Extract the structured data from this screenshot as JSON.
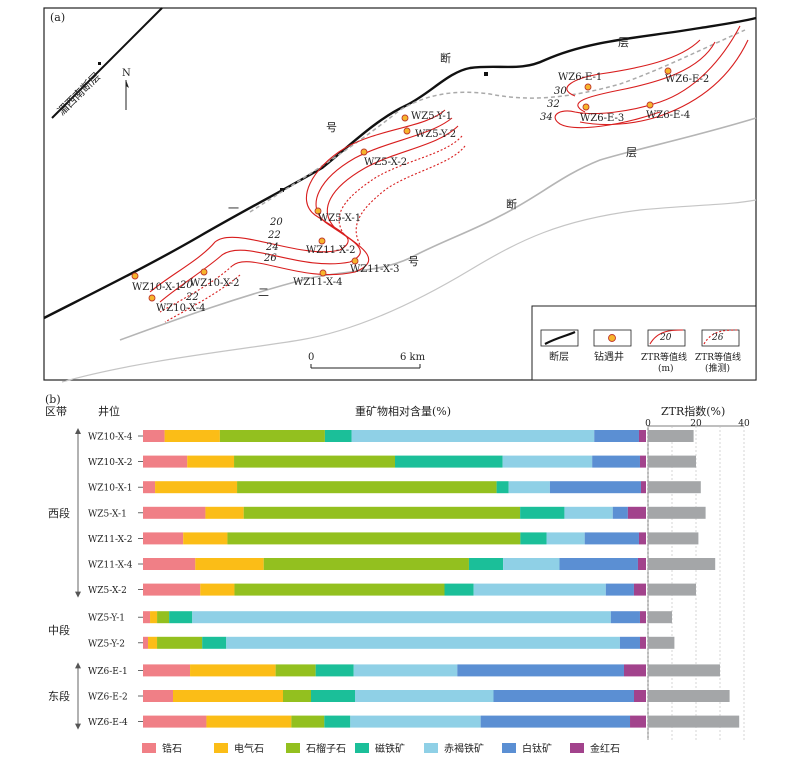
{
  "panel_a": {
    "label": "(a)",
    "fault_nw": "湄西南断层",
    "fault_main_chars": [
      "断",
      "层",
      "号",
      "一"
    ],
    "fault_south_chars": [
      "断",
      "层",
      "号",
      "二"
    ],
    "north": "N",
    "wells": [
      {
        "id": "WZ5-Y-1"
      },
      {
        "id": "WZ5-Y-2"
      },
      {
        "id": "WZ5-X-2"
      },
      {
        "id": "WZ5-X-1"
      },
      {
        "id": "WZ11-X-2"
      },
      {
        "id": "WZ11-X-3"
      },
      {
        "id": "WZ11-X-4"
      },
      {
        "id": "WZ10-X-1"
      },
      {
        "id": "WZ10-X-2"
      },
      {
        "id": "WZ10-X-4"
      },
      {
        "id": "WZ6-E-1"
      },
      {
        "id": "WZ6-E-2"
      },
      {
        "id": "WZ6-E-3"
      },
      {
        "id": "WZ6-E-4"
      }
    ],
    "contours": [
      {
        "value": "20"
      },
      {
        "value": "22"
      },
      {
        "value": "24"
      },
      {
        "value": "26"
      },
      {
        "value": "30"
      },
      {
        "value": "32"
      },
      {
        "value": "34"
      },
      {
        "value": "20"
      },
      {
        "value": "22"
      }
    ],
    "scale": {
      "start": "0",
      "end": "6 km"
    },
    "legend": [
      {
        "text": "断层"
      },
      {
        "text": "钻遇井"
      },
      {
        "text": "ZTR等值线",
        "sub": "(m)",
        "value": "20"
      },
      {
        "text": "ZTR等值线",
        "sub": "(推测)",
        "value": "26"
      }
    ]
  },
  "chart_data": {
    "type": "bar",
    "panel_label": "(b)",
    "col_zone": "区带",
    "col_well": "井位",
    "title": "重矿物相对含量(%)",
    "ztr_title": "ZTR指数(%)",
    "ztr_ticks": [
      0,
      10,
      20,
      30,
      40
    ],
    "ztr_ticks_labeled": [
      "0",
      "20",
      "40"
    ],
    "ztr_xlim": [
      0,
      40
    ],
    "zones": [
      {
        "name": "西段",
        "wells": [
          "WZ10-X-4",
          "WZ10-X-2",
          "WZ10-X-1",
          "WZ5-X-1",
          "WZ11-X-2",
          "WZ11-X-4",
          "WZ5-X-2"
        ]
      },
      {
        "name": "中段",
        "wells": [
          "WZ5-Y-1",
          "WZ5-Y-2"
        ]
      },
      {
        "name": "东段",
        "wells": [
          "WZ6-E-1",
          "WZ6-E-2",
          "WZ6-E-4"
        ]
      }
    ],
    "minerals": [
      {
        "name": "锆石",
        "color": "#f07f86"
      },
      {
        "name": "电气石",
        "color": "#fbbd17"
      },
      {
        "name": "石榴子石",
        "color": "#93c01f"
      },
      {
        "name": "磁铁矿",
        "color": "#1bbf99"
      },
      {
        "name": "赤褐铁矿",
        "color": "#8fd0e6"
      },
      {
        "name": "白钛矿",
        "color": "#5b8fd3"
      },
      {
        "name": "金红石",
        "color": "#a2438c"
      }
    ],
    "ztr_color": "#a4a6a8",
    "rows": [
      {
        "well": "WZ10-X-4",
        "values": [
          4.3,
          11.0,
          20.9,
          5.3,
          48.3,
          8.9,
          1.4
        ],
        "ztr": 19
      },
      {
        "well": "WZ10-X-2",
        "values": [
          8.8,
          9.3,
          32.0,
          21.4,
          17.8,
          9.5,
          1.2
        ],
        "ztr": 20
      },
      {
        "well": "WZ10-X-1",
        "values": [
          2.4,
          16.3,
          51.6,
          2.4,
          8.2,
          18.1,
          1.0
        ],
        "ztr": 22
      },
      {
        "well": "WZ5-X-1",
        "values": [
          12.4,
          7.6,
          54.9,
          8.8,
          9.6,
          3.0,
          3.6
        ],
        "ztr": 24
      },
      {
        "well": "WZ11-X-2",
        "values": [
          8.0,
          8.8,
          58.3,
          5.2,
          7.6,
          10.8,
          1.4
        ],
        "ztr": 21
      },
      {
        "well": "WZ11-X-4",
        "values": [
          10.4,
          13.6,
          40.8,
          6.8,
          11.2,
          15.6,
          1.6
        ],
        "ztr": 28
      },
      {
        "well": "WZ5-X-2",
        "values": [
          11.4,
          6.8,
          41.8,
          5.8,
          26.3,
          5.6,
          2.4
        ],
        "ztr": 20
      },
      {
        "well": "WZ5-Y-1",
        "values": [
          1.4,
          1.4,
          2.4,
          4.6,
          83.3,
          5.8,
          1.2
        ],
        "ztr": 10
      },
      {
        "well": "WZ5-Y-2",
        "values": [
          1.0,
          1.8,
          9.0,
          4.8,
          78.5,
          4.0,
          1.2
        ],
        "ztr": 11
      },
      {
        "well": "WZ6-E-1",
        "values": [
          9.4,
          17.1,
          8.0,
          7.6,
          20.7,
          33.3,
          4.4
        ],
        "ztr": 30
      },
      {
        "well": "WZ6-E-2",
        "values": [
          6.0,
          22.0,
          5.6,
          8.8,
          27.7,
          28.1,
          2.4
        ],
        "ztr": 34
      },
      {
        "well": "WZ6-E-4",
        "values": [
          12.7,
          17.0,
          6.6,
          5.2,
          26.1,
          29.9,
          3.2
        ],
        "ztr": 38
      }
    ]
  }
}
